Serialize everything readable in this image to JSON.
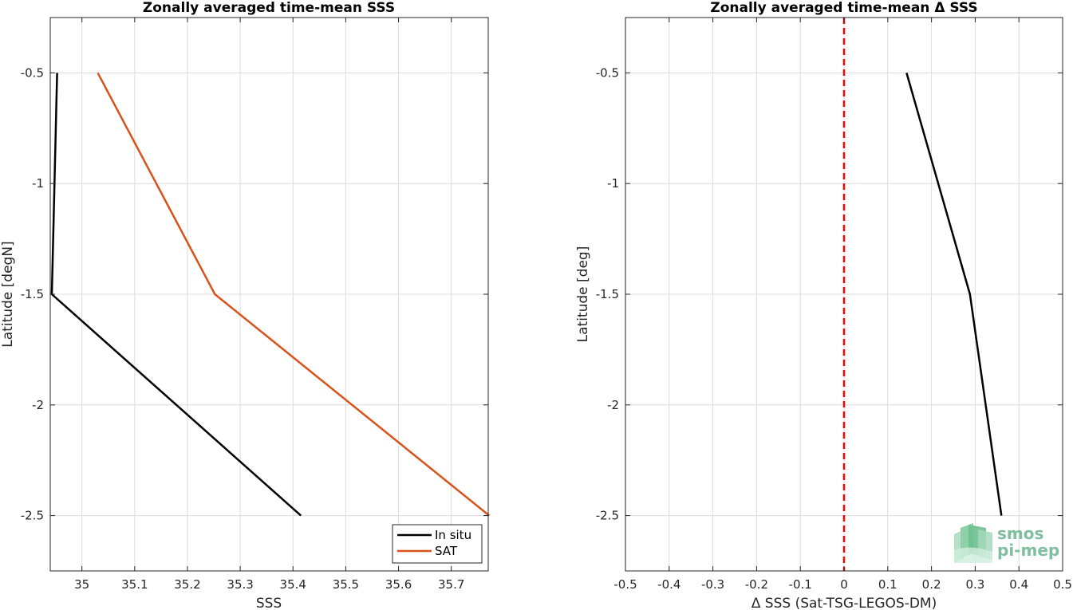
{
  "chart_data": [
    {
      "type": "line",
      "title": "Zonally averaged time-mean SSS",
      "xlabel": "SSS",
      "ylabel": "Latitude [degN]",
      "xlim": [
        34.94,
        35.77
      ],
      "ylim": [
        -2.75,
        -0.25
      ],
      "xticks": [
        "35",
        "35.1",
        "35.2",
        "35.3",
        "35.4",
        "35.5",
        "35.6",
        "35.7"
      ],
      "yticks": [
        "-0.5",
        "-1",
        "-1.5",
        "-2",
        "-2.5"
      ],
      "grid": true,
      "legend_position": "bottom-right",
      "series": [
        {
          "name": "In situ",
          "color": "#000000",
          "x": [
            34.953,
            34.943,
            35.415
          ],
          "y": [
            -0.5,
            -1.5,
            -2.5
          ]
        },
        {
          "name": "SAT",
          "color": "#d95319",
          "x": [
            35.03,
            35.252,
            35.772
          ],
          "y": [
            -0.5,
            -1.5,
            -2.5
          ]
        }
      ]
    },
    {
      "type": "line",
      "title": "Zonally averaged time-mean Δ SSS",
      "xlabel": "Δ SSS (Sat-TSG-LEGOS-DM)",
      "ylabel": "Latitude [deg]",
      "xlim": [
        -0.5,
        0.5
      ],
      "ylim": [
        -2.75,
        -0.25
      ],
      "xticks": [
        "-0.5",
        "-0.4",
        "-0.3",
        "-0.2",
        "-0.1",
        "0",
        "0.1",
        "0.2",
        "0.3",
        "0.4",
        "0.5"
      ],
      "yticks": [
        "-0.5",
        "-1",
        "-1.5",
        "-2",
        "-2.5"
      ],
      "grid": true,
      "reference_line": {
        "x": 0,
        "color": "#ff0000",
        "style": "dashed"
      },
      "series": [
        {
          "color": "#000000",
          "x": [
            0.143,
            0.288,
            0.36
          ],
          "y": [
            -0.5,
            -1.5,
            -2.5
          ]
        }
      ]
    }
  ],
  "logo": {
    "line1": "smos",
    "line2": "pi-mep"
  }
}
